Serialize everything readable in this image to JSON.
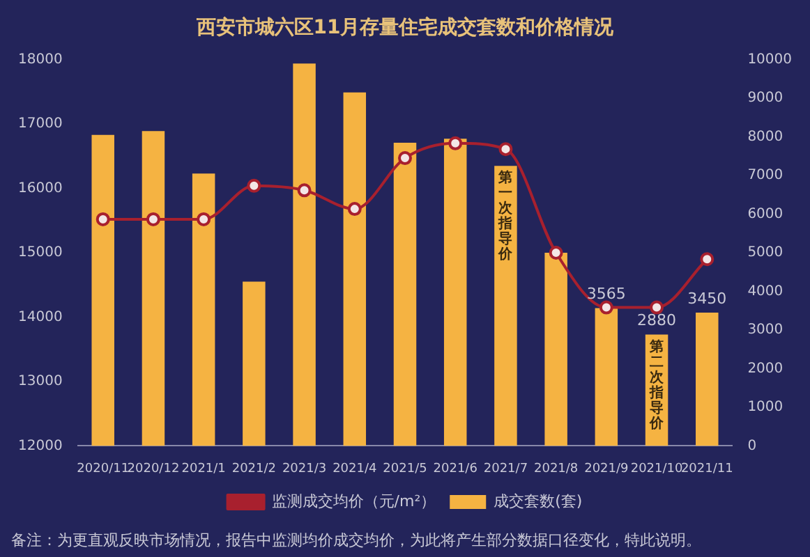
{
  "chart_data": {
    "type": "bar",
    "title": "西安市城六区11月存量住宅成交套数和价格情况",
    "categories": [
      "2020/11",
      "2020/12",
      "2021/1",
      "2021/2",
      "2021/3",
      "2021/4",
      "2021/5",
      "2021/6",
      "2021/7",
      "2021/8",
      "2021/9",
      "2021/10",
      "2021/11"
    ],
    "series": [
      {
        "name": "成交套数(套)",
        "axis": "y2",
        "color": "#f5b342",
        "values": [
          8050,
          8150,
          7050,
          4250,
          9900,
          9150,
          7850,
          7950,
          7250,
          5000,
          3565,
          2880,
          3450
        ],
        "value_labels": [
          null,
          null,
          null,
          null,
          null,
          null,
          null,
          null,
          null,
          null,
          "3565",
          "2880",
          "3450"
        ]
      },
      {
        "name": "监测成交均价（元/m²）",
        "type": "line",
        "axis": "y",
        "color": "#a8202e",
        "marker": "circle",
        "values": [
          15520,
          15520,
          15520,
          16040,
          15970,
          15680,
          16470,
          16700,
          16610,
          15000,
          14150,
          14150,
          14900
        ]
      }
    ],
    "ylim": [
      12000,
      18000
    ],
    "yticks": [
      12000,
      13000,
      14000,
      15000,
      16000,
      17000,
      18000
    ],
    "y2lim": [
      0,
      10000
    ],
    "y2ticks": [
      0,
      1000,
      2000,
      3000,
      4000,
      5000,
      6000,
      7000,
      8000,
      9000,
      10000
    ],
    "grid": false,
    "legend": "bottom",
    "annotations": [
      "第一次指导价",
      "第二次指导价",
      "备注：为更直观反映市场情况，报告中监测均价成交均价，为此将产生部分数据口径变化，特此说明。"
    ]
  }
}
